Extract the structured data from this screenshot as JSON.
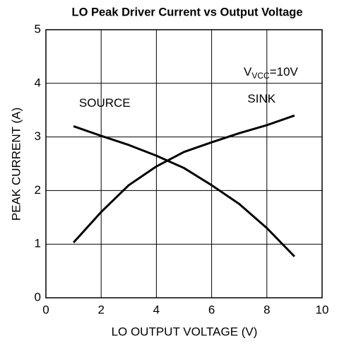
{
  "chart_data": {
    "type": "line",
    "title": "LO Peak Driver Current vs Output Voltage",
    "x_label": "LO OUTPUT VOLTAGE (V)",
    "y_label": "PEAK CURRENT (A)",
    "x": [
      1,
      2,
      3,
      4,
      5,
      6,
      7,
      8,
      9
    ],
    "series": [
      {
        "name": "SOURCE",
        "color": "#000000",
        "values": [
          3.2,
          3.02,
          2.85,
          2.65,
          2.42,
          2.1,
          1.75,
          1.3,
          0.77
        ]
      },
      {
        "name": "SINK",
        "color": "#000000",
        "values": [
          1.03,
          1.6,
          2.1,
          2.45,
          2.72,
          2.9,
          3.07,
          3.22,
          3.4
        ]
      }
    ],
    "xlim": [
      0,
      10
    ],
    "ylim": [
      0,
      5
    ],
    "xticks": [
      0,
      2,
      4,
      6,
      8,
      10
    ],
    "yticks": [
      0,
      1,
      2,
      3,
      4,
      5
    ],
    "grid": true,
    "annotation": {
      "text": "V",
      "subscript": "VCC",
      "suffix": "=10V"
    }
  }
}
